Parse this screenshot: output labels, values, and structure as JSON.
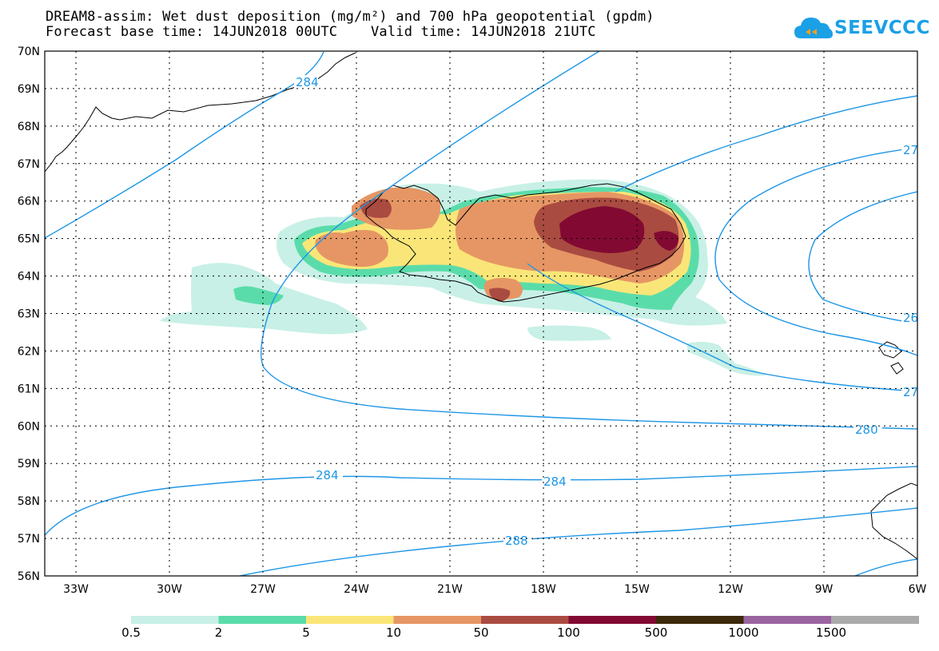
{
  "title_line1": "DREAM8-assim: Wet dust deposition (mg/m²) and 700 hPa geopotential (gpdm)",
  "title_line2": "Forecast base time: 14JUN2018 00UTC    Valid time: 14JUN2018 21UTC",
  "logo_text": "SEEVCCC",
  "map": {
    "lat_labels": [
      "70N",
      "69N",
      "68N",
      "67N",
      "66N",
      "65N",
      "64N",
      "63N",
      "62N",
      "61N",
      "60N",
      "59N",
      "58N",
      "57N",
      "56N"
    ],
    "lon_labels": [
      "33W",
      "30W",
      "27W",
      "24W",
      "21W",
      "18W",
      "15W",
      "12W",
      "9W",
      "6W"
    ],
    "contour_labels": [
      "284",
      "27",
      "26",
      "27",
      "280",
      "284",
      "284",
      "288"
    ],
    "contour_color": "#1e96e6",
    "coastline_color": "#000000"
  },
  "legend": {
    "labels": [
      "0.5",
      "2",
      "5",
      "10",
      "50",
      "100",
      "500",
      "1000",
      "1500"
    ],
    "colors": [
      "#c8f0e6",
      "#5adcaa",
      "#fae678",
      "#e69664",
      "#aa4b41",
      "#820a32",
      "#3c280a",
      "#9a64a0",
      "#aaaaaa"
    ]
  }
}
